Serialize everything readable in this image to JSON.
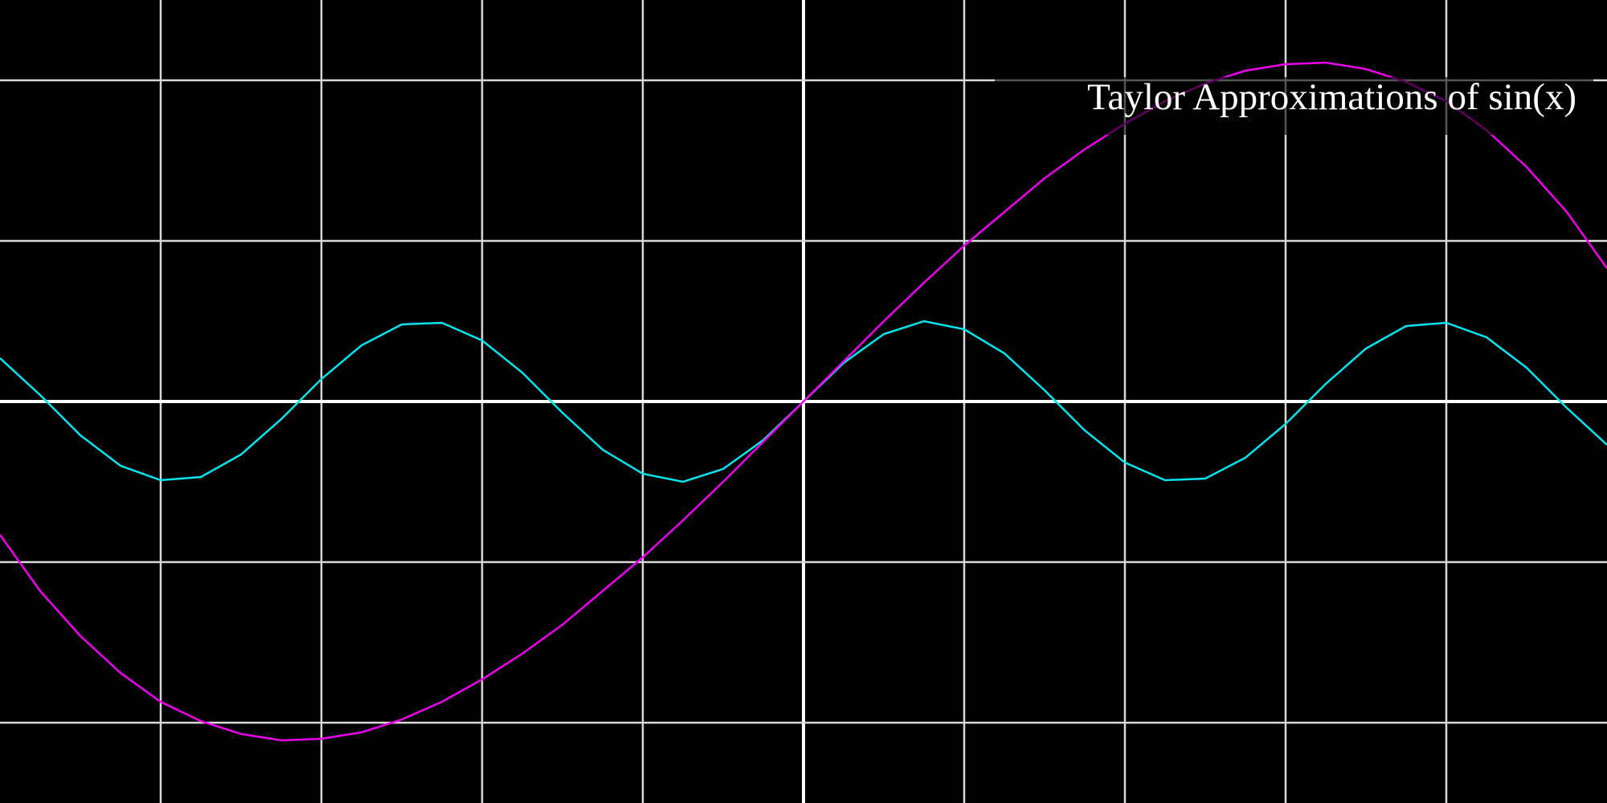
{
  "chart_data": {
    "type": "line",
    "title": "Taylor Approximations of sin(x)",
    "x": [
      -5,
      -4.75,
      -4.5,
      -4.25,
      -4,
      -3.75,
      -3.5,
      -3.25,
      -3,
      -2.75,
      -2.5,
      -2.25,
      -2,
      -1.75,
      -1.5,
      -1.25,
      -1,
      -0.75,
      -0.5,
      -0.25,
      0,
      0.25,
      0.5,
      0.75,
      1,
      1.25,
      1.5,
      1.75,
      2,
      2.25,
      2.5,
      2.75,
      3,
      3.25,
      3.5,
      3.75,
      4,
      4.25,
      4.5,
      4.75,
      5
    ],
    "series": [
      {
        "color": "#00e5ee",
        "values": [
          0.27,
          0.04,
          -0.21,
          -0.4,
          -0.49,
          -0.47,
          -0.33,
          -0.11,
          0.14,
          0.35,
          0.48,
          0.49,
          0.38,
          0.18,
          -0.07,
          -0.3,
          -0.45,
          -0.5,
          -0.42,
          -0.24,
          0,
          0.24,
          0.42,
          0.5,
          0.45,
          0.3,
          0.07,
          -0.18,
          -0.38,
          -0.49,
          -0.48,
          -0.35,
          -0.14,
          0.11,
          0.33,
          0.47,
          0.49,
          0.4,
          0.21,
          -0.04,
          -0.27
        ]
      },
      {
        "color": "#ee00ee",
        "values": [
          -0.83,
          -1.18,
          -1.46,
          -1.69,
          -1.87,
          -1.99,
          -2.07,
          -2.11,
          -2.1,
          -2.06,
          -1.98,
          -1.87,
          -1.73,
          -1.57,
          -1.39,
          -1.18,
          -0.97,
          -0.74,
          -0.5,
          -0.25,
          0,
          0.25,
          0.5,
          0.74,
          0.97,
          1.18,
          1.39,
          1.57,
          1.73,
          1.87,
          1.98,
          2.06,
          2.1,
          2.11,
          2.07,
          1.99,
          1.87,
          1.69,
          1.46,
          1.18,
          0.83
        ]
      }
    ],
    "xlim": [
      -5,
      5
    ],
    "ylim": [
      -2.5,
      2.5
    ],
    "xticks": [
      -4,
      -3,
      -2,
      -1,
      0,
      1,
      2,
      3,
      4
    ],
    "yticks": [
      -2,
      -1,
      0,
      1,
      2
    ],
    "grid": true
  }
}
